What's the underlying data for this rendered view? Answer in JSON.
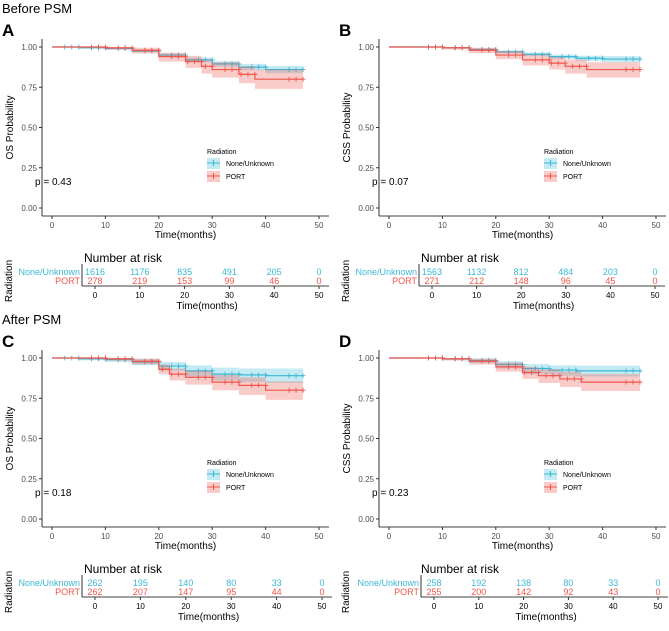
{
  "sections": {
    "before": "Before PSM",
    "after": "After PSM"
  },
  "chart_data": [
    {
      "type": "line",
      "panel": "A",
      "section": "before",
      "ylabel": "OS Probability",
      "xlabel": "Time(months)",
      "xlim": [
        0,
        50
      ],
      "ylim": [
        0,
        1
      ],
      "xticks": [
        "0",
        "10",
        "20",
        "30",
        "40",
        "50"
      ],
      "yticks": [
        "0.00",
        "0.25",
        "0.50",
        "0.75",
        "1.00"
      ],
      "p_value": "p = 0.43",
      "legend": {
        "title": "Radiation",
        "position": "bottom-center",
        "entries": [
          "None/Unknown",
          "PORT"
        ]
      },
      "series": [
        {
          "name": "None/Unknown",
          "color": "#3CB8D6",
          "t": [
            0,
            5,
            10,
            15,
            20,
            25,
            30,
            35,
            40,
            47
          ],
          "s": [
            1,
            0.995,
            0.99,
            0.975,
            0.95,
            0.92,
            0.895,
            0.875,
            0.86,
            0.855
          ],
          "lo": [
            1,
            0.99,
            0.985,
            0.968,
            0.94,
            0.905,
            0.878,
            0.855,
            0.838,
            0.83
          ],
          "hi": [
            1,
            1,
            0.995,
            0.982,
            0.96,
            0.935,
            0.912,
            0.895,
            0.882,
            0.878
          ]
        },
        {
          "name": "PORT",
          "color": "#F0554B",
          "t": [
            0,
            10,
            15,
            20,
            25,
            28,
            30,
            35,
            38,
            47
          ],
          "s": [
            1,
            0.995,
            0.98,
            0.94,
            0.91,
            0.88,
            0.86,
            0.83,
            0.8,
            0.8
          ],
          "lo": [
            1,
            0.985,
            0.96,
            0.91,
            0.87,
            0.835,
            0.81,
            0.775,
            0.74,
            0.735
          ],
          "hi": [
            1,
            1,
            0.995,
            0.965,
            0.945,
            0.92,
            0.905,
            0.88,
            0.86,
            0.86
          ]
        }
      ],
      "risk_table": {
        "title": "Number at risk",
        "ylabel": "Radiation",
        "xlabel": "Time(months)",
        "rows": [
          {
            "name": "None/Unknown",
            "values": [
              "1616",
              "1176",
              "835",
              "491",
              "205",
              "0"
            ]
          },
          {
            "name": "PORT",
            "values": [
              "278",
              "219",
              "153",
              "99",
              "46",
              "0"
            ]
          }
        ]
      }
    },
    {
      "type": "line",
      "panel": "B",
      "section": "before",
      "ylabel": "CSS Probability",
      "xlabel": "Time(months)",
      "xlim": [
        0,
        50
      ],
      "ylim": [
        0,
        1
      ],
      "xticks": [
        "0",
        "10",
        "20",
        "30",
        "40",
        "50"
      ],
      "yticks": [
        "0.00",
        "0.25",
        "0.50",
        "0.75",
        "1.00"
      ],
      "p_value": "p = 0.07",
      "legend": {
        "title": "Radiation",
        "position": "bottom-center",
        "entries": [
          "None/Unknown",
          "PORT"
        ]
      },
      "series": [
        {
          "name": "None/Unknown",
          "color": "#3CB8D6",
          "t": [
            0,
            10,
            15,
            20,
            25,
            30,
            35,
            40,
            47
          ],
          "s": [
            1,
            0.995,
            0.985,
            0.97,
            0.955,
            0.94,
            0.93,
            0.925,
            0.92
          ],
          "lo": [
            1,
            0.99,
            0.978,
            0.96,
            0.943,
            0.926,
            0.912,
            0.905,
            0.9
          ],
          "hi": [
            1,
            1,
            0.992,
            0.978,
            0.966,
            0.953,
            0.946,
            0.943,
            0.94
          ]
        },
        {
          "name": "PORT",
          "color": "#F0554B",
          "t": [
            0,
            10,
            15,
            20,
            25,
            30,
            33,
            37,
            47
          ],
          "s": [
            1,
            0.995,
            0.98,
            0.95,
            0.92,
            0.9,
            0.88,
            0.86,
            0.86
          ],
          "lo": [
            1,
            0.985,
            0.962,
            0.925,
            0.885,
            0.86,
            0.835,
            0.81,
            0.805
          ],
          "hi": [
            1,
            1,
            0.995,
            0.975,
            0.952,
            0.938,
            0.922,
            0.905,
            0.905
          ]
        }
      ],
      "risk_table": {
        "title": "Number at risk",
        "ylabel": "Radiation",
        "xlabel": "Time(months)",
        "rows": [
          {
            "name": "None/Unknown",
            "values": [
              "1563",
              "1132",
              "812",
              "484",
              "203",
              "0"
            ]
          },
          {
            "name": "PORT",
            "values": [
              "271",
              "212",
              "148",
              "96",
              "45",
              "0"
            ]
          }
        ]
      }
    },
    {
      "type": "line",
      "panel": "C",
      "section": "after",
      "ylabel": "OS Probability",
      "xlabel": "Time(months)",
      "xlim": [
        0,
        50
      ],
      "ylim": [
        0,
        1
      ],
      "xticks": [
        "0",
        "10",
        "20",
        "30",
        "40",
        "50"
      ],
      "yticks": [
        "0.00",
        "0.25",
        "0.50",
        "0.75",
        "1.00"
      ],
      "p_value": "p = 0.18",
      "legend": {
        "title": "Radiation",
        "position": "bottom-center",
        "entries": [
          "None/Unknown",
          "PORT"
        ]
      },
      "series": [
        {
          "name": "None/Unknown",
          "color": "#3CB8D6",
          "t": [
            0,
            5,
            10,
            15,
            20,
            25,
            30,
            35,
            40,
            47
          ],
          "s": [
            1,
            0.995,
            0.99,
            0.975,
            0.95,
            0.92,
            0.9,
            0.895,
            0.89,
            0.89
          ],
          "lo": [
            1,
            0.985,
            0.975,
            0.955,
            0.92,
            0.885,
            0.86,
            0.85,
            0.845,
            0.845
          ],
          "hi": [
            1,
            1,
            1,
            0.995,
            0.975,
            0.955,
            0.94,
            0.935,
            0.935,
            0.935
          ]
        },
        {
          "name": "PORT",
          "color": "#F0554B",
          "t": [
            0,
            10,
            15,
            20,
            22,
            25,
            30,
            35,
            40,
            47
          ],
          "s": [
            1,
            0.995,
            0.98,
            0.93,
            0.9,
            0.88,
            0.85,
            0.83,
            0.8,
            0.79
          ],
          "lo": [
            1,
            0.985,
            0.96,
            0.9,
            0.86,
            0.835,
            0.8,
            0.77,
            0.74,
            0.72
          ],
          "hi": [
            1,
            1,
            0.995,
            0.96,
            0.935,
            0.92,
            0.895,
            0.88,
            0.855,
            0.85
          ]
        }
      ],
      "risk_table": {
        "title": "Number at risk",
        "ylabel": "Radiation",
        "xlabel": "Time(months)",
        "rows": [
          {
            "name": "None/Unknown",
            "values": [
              "262",
              "195",
              "140",
              "80",
              "33",
              "0"
            ]
          },
          {
            "name": "PORT",
            "values": [
              "262",
              "207",
              "147",
              "95",
              "44",
              "0"
            ]
          }
        ]
      }
    },
    {
      "type": "line",
      "panel": "D",
      "section": "after",
      "ylabel": "CSS Probability",
      "xlabel": "Time(months)",
      "xlim": [
        0,
        50
      ],
      "ylim": [
        0,
        1
      ],
      "xticks": [
        "0",
        "10",
        "20",
        "30",
        "40",
        "50"
      ],
      "yticks": [
        "0.00",
        "0.25",
        "0.50",
        "0.75",
        "1.00"
      ],
      "p_value": "p = 0.23",
      "legend": {
        "title": "Radiation",
        "position": "bottom-center",
        "entries": [
          "None/Unknown",
          "PORT"
        ]
      },
      "series": [
        {
          "name": "None/Unknown",
          "color": "#3CB8D6",
          "t": [
            0,
            10,
            15,
            20,
            25,
            30,
            35,
            47
          ],
          "s": [
            1,
            0.995,
            0.985,
            0.96,
            0.935,
            0.925,
            0.92,
            0.92
          ],
          "lo": [
            1,
            0.985,
            0.968,
            0.935,
            0.9,
            0.89,
            0.885,
            0.885
          ],
          "hi": [
            1,
            1,
            0.998,
            0.98,
            0.962,
            0.955,
            0.953,
            0.953
          ]
        },
        {
          "name": "PORT",
          "color": "#F0554B",
          "t": [
            0,
            10,
            15,
            20,
            25,
            28,
            32,
            36,
            47
          ],
          "s": [
            1,
            0.995,
            0.98,
            0.945,
            0.91,
            0.89,
            0.87,
            0.85,
            0.85
          ],
          "lo": [
            1,
            0.985,
            0.96,
            0.915,
            0.87,
            0.845,
            0.82,
            0.795,
            0.79
          ],
          "hi": [
            1,
            1,
            0.995,
            0.972,
            0.945,
            0.93,
            0.915,
            0.9,
            0.9
          ]
        }
      ],
      "risk_table": {
        "title": "Number at risk",
        "ylabel": "Radiation",
        "xlabel": "Time(months)",
        "rows": [
          {
            "name": "None/Unknown",
            "values": [
              "258",
              "192",
              "138",
              "80",
              "33",
              "0"
            ]
          },
          {
            "name": "PORT",
            "values": [
              "255",
              "200",
              "142",
              "92",
              "43",
              "0"
            ]
          }
        ]
      }
    }
  ]
}
